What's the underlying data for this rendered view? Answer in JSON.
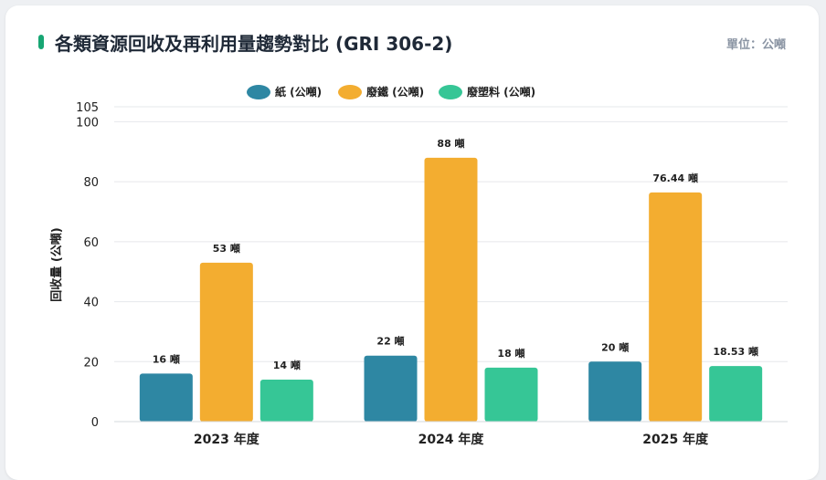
{
  "header": {
    "title": "各類資源回收及再利用量趨勢對比 (GRI 306-2)",
    "unit": "單位：公噸"
  },
  "colors": {
    "accent": "#17a673",
    "paper": "#2e87a3",
    "iron": "#f3ad30",
    "plastic": "#36c696",
    "grid": "#e6e8eb"
  },
  "chart_data": {
    "type": "bar",
    "categories": [
      "2023 年度",
      "2024 年度",
      "2025 年度"
    ],
    "series": [
      {
        "name": "紙 (公噸)",
        "values": [
          16,
          22,
          20
        ],
        "labels": [
          "16 噸",
          "22 噸",
          "20 噸"
        ],
        "color": "#2e87a3"
      },
      {
        "name": "廢鐵 (公噸)",
        "values": [
          53,
          88,
          76.44
        ],
        "labels": [
          "53 噸",
          "88 噸",
          "76.44 噸"
        ],
        "color": "#f3ad30"
      },
      {
        "name": "廢塑料 (公噸)",
        "values": [
          14,
          18,
          18.53
        ],
        "labels": [
          "14 噸",
          "18 噸",
          "18.53 噸"
        ],
        "color": "#36c696"
      }
    ],
    "ylabel": "回收量 (公噸)",
    "xlabel": "",
    "ylim": [
      0,
      105
    ],
    "yticks": [
      0,
      20,
      40,
      60,
      80,
      100,
      105
    ],
    "grid": true,
    "legend_position": "top-center"
  }
}
